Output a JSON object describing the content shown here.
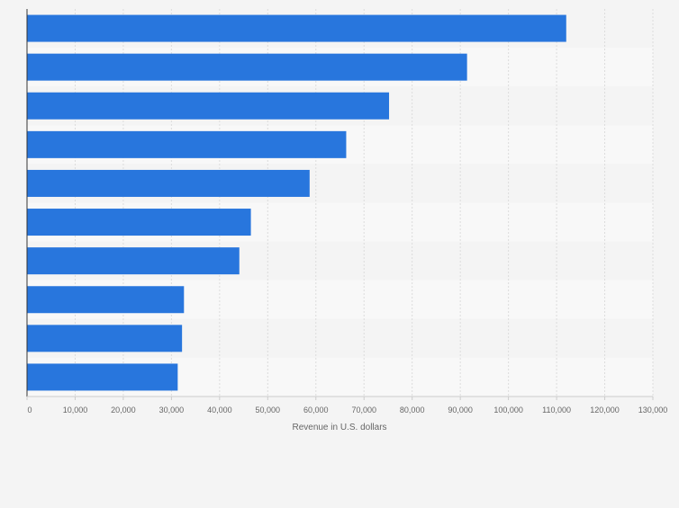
{
  "chart_data": {
    "type": "bar",
    "orientation": "horizontal",
    "title": "",
    "ylabel": "",
    "xlabel": "Revenue in U.S. dollars",
    "xlim": [
      0,
      130000
    ],
    "xticks": [
      0,
      10000,
      20000,
      30000,
      40000,
      50000,
      60000,
      70000,
      80000,
      90000,
      100000,
      110000,
      120000,
      130000
    ],
    "xtick_labels": [
      "0",
      "10,000",
      "20,000",
      "30,000",
      "40,000",
      "50,000",
      "60,000",
      "70,000",
      "80,000",
      "90,000",
      "100,000",
      "110,000",
      "120,000",
      "130,000"
    ],
    "categories": [
      "",
      "",
      "",
      "",
      "",
      "",
      "",
      "",
      "",
      ""
    ],
    "values": [
      112000,
      91400,
      75200,
      66300,
      58700,
      46500,
      44100,
      32600,
      32200,
      31300
    ],
    "grid": true,
    "colors": {
      "bar": "#2876dd",
      "band_light": "#f8f8f8",
      "band_dark": "#f4f4f4",
      "grid": "#dcdcdc",
      "axis": "#333333",
      "text": "#666666"
    }
  }
}
